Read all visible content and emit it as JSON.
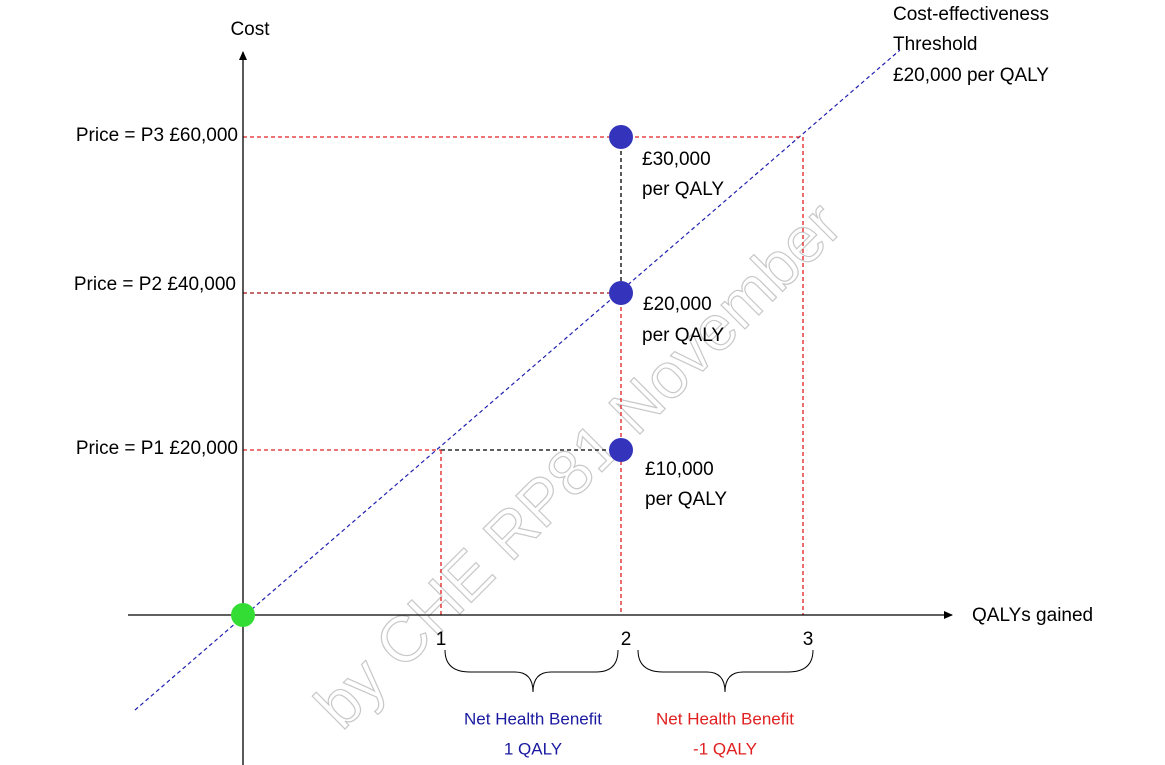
{
  "axes": {
    "y_label": "Cost",
    "x_label": "QALYs gained",
    "x_ticks": [
      "1",
      "2",
      "3"
    ]
  },
  "prices": [
    "Price = P3 £60,000",
    "Price = P2 £40,000",
    "Price = P1 £20,000"
  ],
  "ratios": [
    [
      "£30,000",
      "per QALY"
    ],
    [
      "£20,000",
      "per QALY"
    ],
    [
      "£10,000",
      "per QALY"
    ]
  ],
  "threshold": [
    "Cost-effectiveness",
    "Threshold",
    "£20,000 per QALY"
  ],
  "net_benefit": {
    "positive": [
      "Net Health Benefit",
      "1 QALY"
    ],
    "negative": [
      "Net Health Benefit",
      "-1 QALY"
    ]
  },
  "watermark": "by CHE RP81 November"
}
